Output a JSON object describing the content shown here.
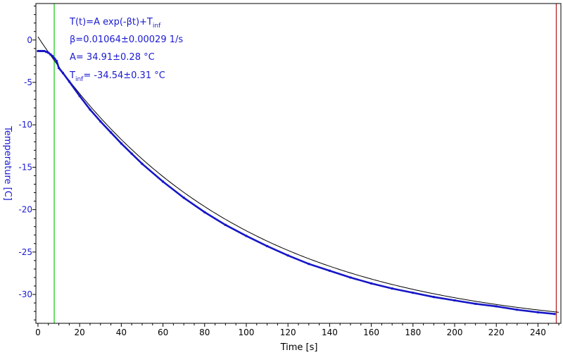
{
  "colors": {
    "data": "#1616c8",
    "fit": "#000000",
    "y_axis_text": "#1a1ad2",
    "x_axis_text": "#000000",
    "annotation": "#1a1ad2",
    "left_marker": "#22cc22",
    "right_marker": "#bb2222"
  },
  "chart_data": {
    "type": "scatter",
    "xlabel": "Time [s]",
    "ylabel": "Temperature [C]",
    "xlim": [
      -1,
      251
    ],
    "ylim": [
      -33.4,
      4.3
    ],
    "x_ticks": [
      0,
      20,
      40,
      60,
      80,
      100,
      120,
      140,
      160,
      180,
      200,
      220,
      240
    ],
    "y_ticks": [
      0,
      -5,
      -10,
      -15,
      -20,
      -25,
      -30
    ],
    "x_tick_labels": [
      "0",
      "20",
      "40",
      "60",
      "80",
      "100",
      "120",
      "140",
      "160",
      "180",
      "200",
      "220",
      "240"
    ],
    "y_tick_labels": [
      "0",
      "-5",
      "-10",
      "-15",
      "-20",
      "-25",
      "-30"
    ],
    "grid": false,
    "vertical_markers": [
      {
        "x": 7.8,
        "color": "#22cc22"
      },
      {
        "x": 248.8,
        "color": "#bb2222"
      }
    ],
    "fit_model": {
      "A": 34.91,
      "beta": 0.01064,
      "T_inf": -34.54,
      "x_range": [
        0,
        250
      ]
    },
    "series": [
      {
        "x": [
          0,
          1,
          2,
          3,
          4,
          5,
          6,
          7,
          8,
          9,
          10,
          12,
          15,
          20,
          25,
          30,
          35,
          40,
          45,
          50,
          60,
          70,
          80,
          90,
          100,
          110,
          120,
          130,
          140,
          150,
          160,
          170,
          180,
          190,
          200,
          210,
          220,
          230,
          240,
          248
        ],
        "y": [
          -1.3,
          -1.3,
          -1.3,
          -1.3,
          -1.4,
          -1.5,
          -1.7,
          -1.9,
          -2.2,
          -2.5,
          -3.3,
          -3.9,
          -4.9,
          -6.6,
          -8.2,
          -9.6,
          -10.9,
          -12.2,
          -13.4,
          -14.6,
          -16.7,
          -18.6,
          -20.3,
          -21.8,
          -23.1,
          -24.3,
          -25.4,
          -26.4,
          -27.2,
          -28.0,
          -28.7,
          -29.3,
          -29.8,
          -30.3,
          -30.7,
          -31.1,
          -31.4,
          -31.8,
          -32.1,
          -32.3
        ]
      }
    ],
    "annotations": {
      "line1_main": "T(t)=A exp(-βt)+T",
      "line1_sub": "inf",
      "line2": "β=0.01064±0.00029 1/s",
      "line3": "A= 34.91±0.28 °C",
      "line4_main": "T",
      "line4_sub": "inf",
      "line4_rest": "= -34.54±0.31 °C"
    }
  }
}
